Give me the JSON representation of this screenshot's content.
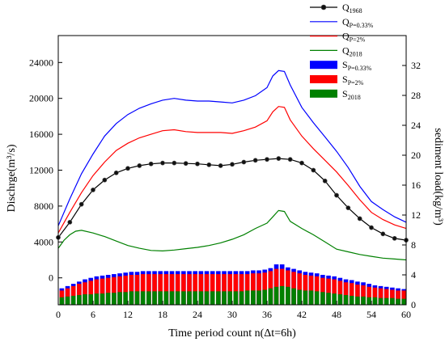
{
  "chart_data": {
    "type": "line+bar",
    "xlabel": "Time period count n(Δt=6h)",
    "ylabel_left": "Dischrge(m³/s)",
    "ylabel_right": "sediment load(kg/m³)",
    "x_ticks": [
      0,
      6,
      12,
      18,
      24,
      30,
      36,
      42,
      48,
      54,
      60
    ],
    "y_left_ticks": [
      0,
      4000,
      8000,
      12000,
      16000,
      20000,
      24000
    ],
    "y_right_ticks": [
      0,
      4,
      8,
      12,
      16,
      20,
      24,
      28,
      32
    ],
    "xlim": [
      0,
      60
    ],
    "ylim_left": [
      -3000,
      27000
    ],
    "ylim_right": [
      0,
      36
    ],
    "legend_position": "top-right",
    "legend": [
      {
        "base": "Q",
        "sub": "1968",
        "kind": "line-marker",
        "color": "#000000"
      },
      {
        "base": "Q",
        "sub": "P=0.33%",
        "kind": "line",
        "color": "#0000ff"
      },
      {
        "base": "Q",
        "sub": "P=2%",
        "kind": "line",
        "color": "#ff0000"
      },
      {
        "base": "Q",
        "sub": "2018",
        "kind": "line",
        "color": "#008000"
      },
      {
        "base": "S",
        "sub": "P=0.33%",
        "kind": "bar",
        "color": "#0000ff"
      },
      {
        "base": "S",
        "sub": "P=2%",
        "kind": "bar",
        "color": "#ff0000"
      },
      {
        "base": "S",
        "sub": "2018",
        "kind": "bar",
        "color": "#008000"
      }
    ],
    "lines": [
      {
        "name": "Q1968",
        "color": "#000000",
        "marker": true,
        "points": [
          [
            0,
            4500
          ],
          [
            2,
            6200
          ],
          [
            4,
            8200
          ],
          [
            6,
            9800
          ],
          [
            8,
            10900
          ],
          [
            10,
            11700
          ],
          [
            12,
            12200
          ],
          [
            14,
            12500
          ],
          [
            16,
            12700
          ],
          [
            18,
            12800
          ],
          [
            20,
            12800
          ],
          [
            22,
            12750
          ],
          [
            24,
            12700
          ],
          [
            26,
            12600
          ],
          [
            28,
            12500
          ],
          [
            30,
            12650
          ],
          [
            32,
            12900
          ],
          [
            34,
            13100
          ],
          [
            36,
            13200
          ],
          [
            38,
            13300
          ],
          [
            40,
            13200
          ],
          [
            42,
            12800
          ],
          [
            44,
            12000
          ],
          [
            46,
            10800
          ],
          [
            48,
            9200
          ],
          [
            50,
            7800
          ],
          [
            52,
            6600
          ],
          [
            54,
            5600
          ],
          [
            56,
            4900
          ],
          [
            58,
            4400
          ],
          [
            60,
            4200
          ]
        ]
      },
      {
        "name": "QP=0.33%",
        "color": "#0000ff",
        "marker": false,
        "points": [
          [
            0,
            5800
          ],
          [
            2,
            8800
          ],
          [
            4,
            11600
          ],
          [
            6,
            13800
          ],
          [
            8,
            15800
          ],
          [
            10,
            17200
          ],
          [
            12,
            18200
          ],
          [
            14,
            18900
          ],
          [
            16,
            19400
          ],
          [
            18,
            19800
          ],
          [
            20,
            20000
          ],
          [
            22,
            19800
          ],
          [
            24,
            19700
          ],
          [
            26,
            19700
          ],
          [
            28,
            19600
          ],
          [
            30,
            19500
          ],
          [
            32,
            19800
          ],
          [
            34,
            20300
          ],
          [
            36,
            21200
          ],
          [
            37,
            22500
          ],
          [
            38,
            23100
          ],
          [
            39,
            23000
          ],
          [
            40,
            21500
          ],
          [
            42,
            19000
          ],
          [
            44,
            17300
          ],
          [
            46,
            15700
          ],
          [
            48,
            14100
          ],
          [
            50,
            12300
          ],
          [
            52,
            10200
          ],
          [
            54,
            8500
          ],
          [
            56,
            7600
          ],
          [
            58,
            6800
          ],
          [
            60,
            6200
          ]
        ]
      },
      {
        "name": "QP=2%",
        "color": "#ff0000",
        "marker": false,
        "points": [
          [
            0,
            5000
          ],
          [
            2,
            7300
          ],
          [
            4,
            9500
          ],
          [
            6,
            11400
          ],
          [
            8,
            12900
          ],
          [
            10,
            14200
          ],
          [
            12,
            15000
          ],
          [
            14,
            15600
          ],
          [
            16,
            16000
          ],
          [
            18,
            16400
          ],
          [
            20,
            16500
          ],
          [
            22,
            16300
          ],
          [
            24,
            16200
          ],
          [
            26,
            16200
          ],
          [
            28,
            16200
          ],
          [
            30,
            16100
          ],
          [
            32,
            16400
          ],
          [
            34,
            16800
          ],
          [
            36,
            17500
          ],
          [
            37,
            18500
          ],
          [
            38,
            19100
          ],
          [
            39,
            19000
          ],
          [
            40,
            17600
          ],
          [
            42,
            15800
          ],
          [
            44,
            14400
          ],
          [
            46,
            13100
          ],
          [
            48,
            11800
          ],
          [
            50,
            10300
          ],
          [
            52,
            8700
          ],
          [
            54,
            7300
          ],
          [
            56,
            6500
          ],
          [
            58,
            5900
          ],
          [
            60,
            5500
          ]
        ]
      },
      {
        "name": "Q2018",
        "color": "#008000",
        "marker": false,
        "points": [
          [
            0,
            3300
          ],
          [
            1,
            4200
          ],
          [
            2,
            4800
          ],
          [
            3,
            5200
          ],
          [
            4,
            5300
          ],
          [
            6,
            5000
          ],
          [
            8,
            4600
          ],
          [
            10,
            4100
          ],
          [
            12,
            3600
          ],
          [
            14,
            3300
          ],
          [
            16,
            3050
          ],
          [
            18,
            3000
          ],
          [
            20,
            3100
          ],
          [
            22,
            3250
          ],
          [
            24,
            3400
          ],
          [
            26,
            3600
          ],
          [
            28,
            3900
          ],
          [
            30,
            4300
          ],
          [
            32,
            4800
          ],
          [
            34,
            5500
          ],
          [
            36,
            6100
          ],
          [
            37,
            6800
          ],
          [
            38,
            7500
          ],
          [
            39,
            7400
          ],
          [
            40,
            6300
          ],
          [
            42,
            5500
          ],
          [
            44,
            4800
          ],
          [
            46,
            4000
          ],
          [
            48,
            3200
          ],
          [
            50,
            2900
          ],
          [
            52,
            2600
          ],
          [
            54,
            2400
          ],
          [
            56,
            2200
          ],
          [
            58,
            2100
          ],
          [
            60,
            2000
          ]
        ]
      }
    ],
    "bars": {
      "x": [
        1,
        2,
        3,
        4,
        5,
        6,
        7,
        8,
        9,
        10,
        11,
        12,
        13,
        14,
        15,
        16,
        17,
        18,
        19,
        20,
        21,
        22,
        23,
        24,
        25,
        26,
        27,
        28,
        29,
        30,
        31,
        32,
        33,
        34,
        35,
        36,
        37,
        38,
        39,
        40,
        41,
        42,
        43,
        44,
        45,
        46,
        47,
        48,
        49,
        50,
        51,
        52,
        53,
        54,
        55,
        56,
        57,
        58,
        59,
        60
      ],
      "S2018": [
        1.0,
        1.1,
        1.2,
        1.3,
        1.4,
        1.4,
        1.5,
        1.5,
        1.6,
        1.6,
        1.7,
        1.7,
        1.8,
        1.8,
        1.8,
        1.8,
        1.8,
        1.8,
        1.8,
        1.8,
        1.8,
        1.8,
        1.8,
        1.8,
        1.8,
        1.8,
        1.8,
        1.8,
        1.8,
        1.8,
        1.8,
        1.8,
        1.9,
        1.9,
        1.9,
        2.0,
        2.2,
        2.4,
        2.5,
        2.4,
        2.2,
        2.0,
        1.9,
        1.9,
        1.8,
        1.7,
        1.6,
        1.5,
        1.4,
        1.3,
        1.2,
        1.1,
        1.1,
        1.0,
        1.0,
        0.9,
        0.9,
        0.9,
        0.8,
        0.8
      ],
      "SP=2%": [
        1.9,
        2.2,
        2.5,
        2.8,
        3.0,
        3.2,
        3.4,
        3.5,
        3.6,
        3.7,
        3.8,
        3.9,
        4.0,
        4.0,
        4.1,
        4.1,
        4.1,
        4.1,
        4.1,
        4.1,
        4.1,
        4.1,
        4.1,
        4.1,
        4.1,
        4.1,
        4.1,
        4.1,
        4.1,
        4.1,
        4.1,
        4.1,
        4.1,
        4.2,
        4.2,
        4.3,
        4.5,
        4.8,
        4.8,
        4.6,
        4.4,
        4.2,
        4.0,
        3.9,
        3.8,
        3.6,
        3.5,
        3.4,
        3.2,
        3.0,
        2.9,
        2.7,
        2.6,
        2.4,
        2.3,
        2.2,
        2.1,
        2.0,
        1.9,
        1.9
      ],
      "SP=0.33%": [
        2.2,
        2.5,
        2.8,
        3.1,
        3.4,
        3.6,
        3.8,
        3.9,
        4.0,
        4.1,
        4.2,
        4.3,
        4.4,
        4.4,
        4.5,
        4.5,
        4.5,
        4.5,
        4.5,
        4.5,
        4.5,
        4.5,
        4.5,
        4.5,
        4.5,
        4.5,
        4.5,
        4.5,
        4.5,
        4.5,
        4.5,
        4.5,
        4.5,
        4.6,
        4.6,
        4.7,
        4.9,
        5.4,
        5.4,
        5.0,
        4.8,
        4.6,
        4.4,
        4.3,
        4.2,
        4.0,
        3.9,
        3.8,
        3.6,
        3.4,
        3.3,
        3.1,
        3.0,
        2.8,
        2.6,
        2.5,
        2.4,
        2.3,
        2.2,
        2.1
      ]
    }
  }
}
